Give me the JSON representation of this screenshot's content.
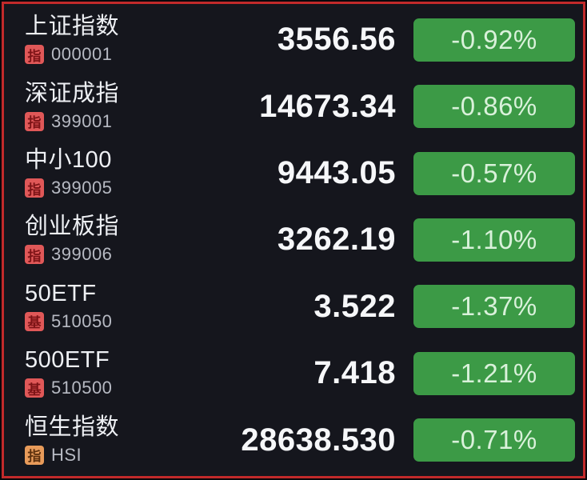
{
  "colors": {
    "background": "#15161d",
    "frame_border": "#c22a2a",
    "badge_down_green": "#3c9a46",
    "tag_red": "#e05858",
    "tag_orange": "#e89b5a"
  },
  "rows": [
    {
      "name": "上证指数",
      "tag": "指",
      "tag_variant": "red",
      "code": "000001",
      "value": "3556.56",
      "change": "-0.92%"
    },
    {
      "name": "深证成指",
      "tag": "指",
      "tag_variant": "red",
      "code": "399001",
      "value": "14673.34",
      "change": "-0.86%"
    },
    {
      "name": "中小100",
      "tag": "指",
      "tag_variant": "red",
      "code": "399005",
      "value": "9443.05",
      "change": "-0.57%"
    },
    {
      "name": "创业板指",
      "tag": "指",
      "tag_variant": "red",
      "code": "399006",
      "value": "3262.19",
      "change": "-1.10%"
    },
    {
      "name": "50ETF",
      "tag": "基",
      "tag_variant": "red",
      "code": "510050",
      "value": "3.522",
      "change": "-1.37%"
    },
    {
      "name": "500ETF",
      "tag": "基",
      "tag_variant": "red",
      "code": "510500",
      "value": "7.418",
      "change": "-1.21%"
    },
    {
      "name": "恒生指数",
      "tag": "指",
      "tag_variant": "orange",
      "code": "HSI",
      "value": "28638.530",
      "change": "-0.71%"
    }
  ]
}
